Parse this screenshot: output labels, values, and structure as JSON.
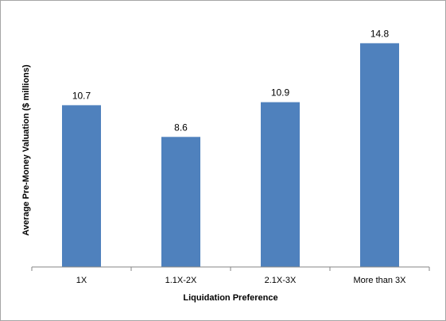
{
  "chart_data": {
    "type": "bar",
    "title": "",
    "xlabel": "Liquidation Preference",
    "ylabel": "Average Pre-Money Valuation ($ millions)",
    "categories": [
      "1X",
      "1.1X-2X",
      "2.1X-3X",
      "More than 3X"
    ],
    "values": [
      10.7,
      8.6,
      10.9,
      14.8
    ],
    "data_labels": [
      "10.7",
      "8.6",
      "10.9",
      "14.8"
    ],
    "ylim": [
      0,
      16.5
    ],
    "grid": false,
    "legend": "none",
    "bar_color": "#4f81bd",
    "axis_color": "#868686"
  }
}
